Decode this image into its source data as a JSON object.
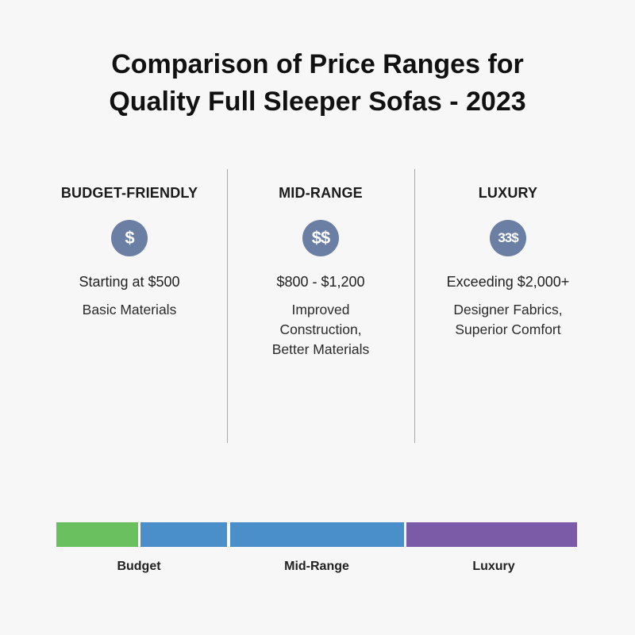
{
  "title": {
    "line1": "Comparison of Price Ranges for",
    "line2": "Quality Full Sleeper Sofas - 2023"
  },
  "columns": [
    {
      "heading": "BUDGET-FRIENDLY",
      "icon_text": "$",
      "price": "Starting at $500",
      "description": [
        "Basic Materials"
      ]
    },
    {
      "heading": "MID-RANGE",
      "icon_text": "$$",
      "price": "$800 - $1,200",
      "description": [
        "Improved",
        "Construction,",
        "Better Materials"
      ]
    },
    {
      "heading": "LUXURY",
      "icon_text": "33$",
      "price": "Exceeding $2,000+",
      "description": [
        "Designer Fabrics,",
        "Superior Comfort"
      ]
    }
  ],
  "scale_bar": {
    "segments": [
      {
        "color": "#6abf5e"
      },
      {
        "color": "#4a8fc9"
      },
      {
        "color": "#4a8fc9"
      },
      {
        "color": "#7b5aa8"
      }
    ],
    "labels": [
      "Budget",
      "Mid-Range",
      "Luxury"
    ]
  },
  "colors": {
    "icon_background": "#6b7ea3",
    "divider": "#a9a9a9",
    "background": "#f7f7f7"
  }
}
